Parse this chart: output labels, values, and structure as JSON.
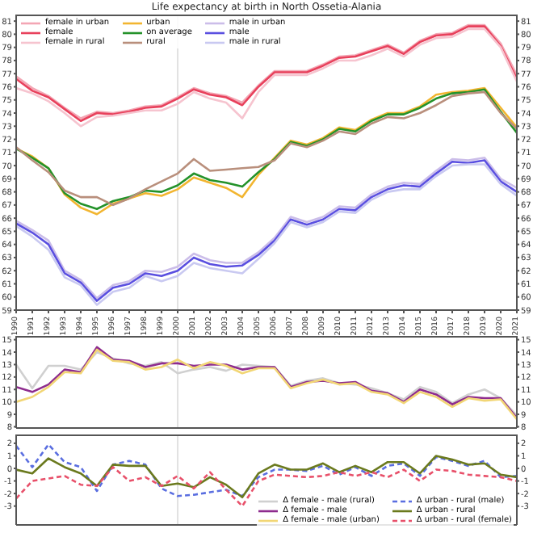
{
  "chart_data": [
    {
      "type": "line",
      "title": "Life expectancy at birth in North Ossetia-Alania",
      "legend": "top left",
      "x": [
        1990,
        1991,
        1992,
        1993,
        1994,
        1995,
        1996,
        1997,
        1998,
        1999,
        2000,
        2001,
        2002,
        2003,
        2004,
        2005,
        2006,
        2007,
        2008,
        2009,
        2010,
        2011,
        2012,
        2013,
        2014,
        2015,
        2016,
        2017,
        2018,
        2019,
        2020,
        2021
      ],
      "xlim": [
        1990,
        2021
      ],
      "xticks": [
        1990,
        1991,
        1992,
        1993,
        1994,
        1995,
        1996,
        1997,
        1998,
        1999,
        2000,
        2001,
        2002,
        2003,
        2004,
        2005,
        2006,
        2007,
        2008,
        2009,
        2010,
        2011,
        2012,
        2013,
        2014,
        2015,
        2016,
        2017,
        2018,
        2019,
        2020,
        2021
      ],
      "ylim": [
        59,
        81.5
      ],
      "yticks": [
        59,
        60,
        61,
        62,
        63,
        64,
        65,
        66,
        67,
        68,
        69,
        70,
        71,
        72,
        73,
        74,
        75,
        76,
        77,
        78,
        79,
        80,
        81
      ],
      "y2lim": [
        59,
        81.5
      ],
      "y2ticks": [
        59,
        60,
        61,
        62,
        63,
        64,
        65,
        66,
        67,
        68,
        69,
        70,
        71,
        72,
        73,
        74,
        75,
        76,
        77,
        78,
        79,
        80,
        81
      ],
      "ref_lines": [
        {
          "axis": "x",
          "value": 2000,
          "color": "#e2e2e2"
        }
      ],
      "series": [
        {
          "name": "female in urban",
          "color": "#f3a6b4",
          "values": [
            76.8,
            75.9,
            75.3,
            74.4,
            73.6,
            74.1,
            74.0,
            74.2,
            74.5,
            74.6,
            75.2,
            75.9,
            75.5,
            75.3,
            74.8,
            76.1,
            77.2,
            77.2,
            77.2,
            77.7,
            78.3,
            78.4,
            78.8,
            79.2,
            78.6,
            79.5,
            80.0,
            80.1,
            80.7,
            80.7,
            79.3,
            76.9
          ]
        },
        {
          "name": "female",
          "color": "#e8415c",
          "values": [
            76.6,
            75.7,
            75.2,
            74.3,
            73.4,
            74.0,
            73.9,
            74.1,
            74.4,
            74.5,
            75.1,
            75.8,
            75.4,
            75.2,
            74.6,
            76.0,
            77.1,
            77.1,
            77.1,
            77.6,
            78.2,
            78.3,
            78.7,
            79.1,
            78.5,
            79.4,
            79.9,
            80.0,
            80.6,
            80.6,
            79.1,
            76.6
          ]
        },
        {
          "name": "female in rural",
          "color": "#f6c4cf",
          "values": [
            75.9,
            75.5,
            74.9,
            74.0,
            73.0,
            73.7,
            73.8,
            74.0,
            74.2,
            74.2,
            74.7,
            75.6,
            75.1,
            74.8,
            73.6,
            75.6,
            76.9,
            76.9,
            76.9,
            77.4,
            78.0,
            78.0,
            78.4,
            78.9,
            78.3,
            79.2,
            79.7,
            79.8,
            80.4,
            80.4,
            79.0,
            76.4
          ]
        },
        {
          "name": "urban",
          "color": "#f2b530",
          "values": [
            71.3,
            70.7,
            69.8,
            67.8,
            66.8,
            66.3,
            67.1,
            67.5,
            67.9,
            67.7,
            68.2,
            69.1,
            68.7,
            68.3,
            67.6,
            69.3,
            70.6,
            71.9,
            71.6,
            72.1,
            72.9,
            72.7,
            73.5,
            74.0,
            74.0,
            74.5,
            75.4,
            75.6,
            75.7,
            75.9,
            74.4,
            72.9
          ]
        },
        {
          "name": "on average",
          "color": "#24922a",
          "values": [
            71.3,
            70.6,
            69.8,
            67.9,
            67.1,
            66.7,
            67.3,
            67.6,
            68.1,
            68.0,
            68.5,
            69.4,
            68.9,
            68.7,
            68.4,
            69.5,
            70.5,
            71.8,
            71.5,
            72.0,
            72.8,
            72.6,
            73.4,
            73.9,
            73.9,
            74.4,
            75.1,
            75.5,
            75.6,
            75.8,
            74.1,
            72.5
          ]
        },
        {
          "name": "rural",
          "color": "#b98f7c",
          "values": [
            71.4,
            70.4,
            69.5,
            68.1,
            67.6,
            67.6,
            67.0,
            67.5,
            68.2,
            68.8,
            69.4,
            70.5,
            69.6,
            69.7,
            69.8,
            69.9,
            70.4,
            71.7,
            71.4,
            71.9,
            72.6,
            72.4,
            73.2,
            73.7,
            73.6,
            74.0,
            74.6,
            75.3,
            75.5,
            75.6,
            74.0,
            72.8
          ]
        },
        {
          "name": "male in urban",
          "color": "#cbbde9",
          "values": [
            65.8,
            65.1,
            64.3,
            62.0,
            61.3,
            59.9,
            60.9,
            61.2,
            62.0,
            61.9,
            62.3,
            63.3,
            62.8,
            62.6,
            62.6,
            63.4,
            64.5,
            66.1,
            65.7,
            66.1,
            66.9,
            66.8,
            67.8,
            68.4,
            68.7,
            68.6,
            69.6,
            70.5,
            70.4,
            70.6,
            69.0,
            68.3
          ]
        },
        {
          "name": "male",
          "color": "#5a4fe0",
          "values": [
            65.6,
            64.9,
            64.0,
            61.8,
            61.1,
            59.7,
            60.7,
            61.0,
            61.8,
            61.6,
            62.0,
            63.0,
            62.5,
            62.3,
            62.4,
            63.2,
            64.3,
            65.9,
            65.5,
            65.9,
            66.7,
            66.6,
            67.6,
            68.2,
            68.5,
            68.4,
            69.4,
            70.3,
            70.2,
            70.4,
            68.8,
            68.0
          ]
        },
        {
          "name": "male in rural",
          "color": "#c9c9f1",
          "values": [
            65.4,
            64.6,
            63.6,
            61.5,
            60.9,
            59.4,
            60.4,
            60.7,
            61.6,
            61.2,
            61.6,
            62.6,
            62.2,
            62.0,
            61.8,
            62.9,
            64.1,
            65.7,
            65.3,
            65.7,
            66.5,
            66.4,
            67.4,
            68.0,
            68.2,
            68.2,
            69.2,
            70.0,
            70.1,
            70.1,
            68.6,
            67.7
          ]
        }
      ]
    },
    {
      "type": "line",
      "tick_labels": "y",
      "x": [
        1990,
        1991,
        1992,
        1993,
        1994,
        1995,
        1996,
        1997,
        1998,
        1999,
        2000,
        2001,
        2002,
        2003,
        2004,
        2005,
        2006,
        2007,
        2008,
        2009,
        2010,
        2011,
        2012,
        2013,
        2014,
        2015,
        2016,
        2017,
        2018,
        2019,
        2020,
        2021
      ],
      "xlim": [
        1990,
        2021
      ],
      "ylim": [
        7.9,
        15.3
      ],
      "yticks": [
        8,
        9,
        10,
        11,
        12,
        13,
        14,
        15
      ],
      "y2lim": [
        7.9,
        15.3
      ],
      "y2ticks": [
        8,
        9,
        10,
        11,
        12,
        13,
        14,
        15
      ],
      "ref_lines": [
        {
          "axis": "x",
          "value": 2000,
          "color": "#e2e2e2"
        }
      ],
      "series": [
        {
          "name": "Δ female - male (rural)",
          "color": "#d0d0d0",
          "values": [
            13.0,
            11.1,
            12.9,
            12.9,
            12.6,
            14.0,
            13.5,
            13.1,
            12.9,
            13.2,
            12.3,
            12.6,
            12.8,
            12.5,
            13.0,
            12.9,
            12.8,
            11.3,
            11.7,
            11.9,
            11.5,
            11.4,
            11.1,
            10.7,
            10.2,
            11.2,
            10.8,
            9.9,
            10.6,
            11.0,
            10.3,
            8.9
          ]
        },
        {
          "name": "Δ female - male",
          "color": "#8e2c8e",
          "values": [
            11.2,
            10.8,
            11.4,
            12.6,
            12.4,
            14.4,
            13.4,
            13.3,
            12.8,
            13.1,
            13.1,
            12.9,
            13.0,
            13.0,
            12.6,
            12.8,
            12.8,
            11.2,
            11.6,
            11.7,
            11.5,
            11.6,
            10.9,
            10.7,
            10.0,
            11.0,
            10.6,
            9.8,
            10.4,
            10.3,
            10.3,
            8.7
          ]
        },
        {
          "name": "Δ female - male (urban)",
          "color": "#f2d675",
          "values": [
            10.0,
            10.4,
            11.2,
            12.4,
            12.3,
            14.2,
            13.3,
            13.2,
            12.6,
            12.8,
            13.4,
            12.7,
            13.2,
            12.9,
            12.3,
            12.7,
            12.7,
            11.1,
            11.5,
            11.8,
            11.4,
            11.5,
            10.8,
            10.6,
            9.9,
            10.8,
            10.4,
            9.6,
            10.3,
            10.1,
            10.2,
            8.6
          ]
        }
      ]
    },
    {
      "type": "line",
      "tick_labels": "y",
      "legend": "bottom right",
      "x": [
        1990,
        1991,
        1992,
        1993,
        1994,
        1995,
        1996,
        1997,
        1998,
        1999,
        2000,
        2001,
        2002,
        2003,
        2004,
        2005,
        2006,
        2007,
        2008,
        2009,
        2010,
        2011,
        2012,
        2013,
        2014,
        2015,
        2016,
        2017,
        2018,
        2019,
        2020,
        2021
      ],
      "xlim": [
        1990,
        2021
      ],
      "ylim": [
        -4.5,
        2.7
      ],
      "yticks": [
        -3,
        -2,
        -1,
        0,
        1,
        2
      ],
      "y2lim": [
        -4.5,
        2.7
      ],
      "y2ticks": [
        -3,
        -2,
        -1,
        0,
        1,
        2
      ],
      "ref_lines": [
        {
          "axis": "x",
          "value": 2000,
          "color": "#e2e2e2"
        }
      ],
      "series": [
        {
          "name": "Δ urban - rural (male)",
          "color": "#5a6ee0",
          "line_style": "dashed",
          "values": [
            1.8,
            0.1,
            1.9,
            0.5,
            0.1,
            -1.8,
            0.3,
            0.6,
            0.3,
            -1.6,
            -2.2,
            -2.1,
            -1.9,
            -1.7,
            -2.2,
            -0.7,
            -0.1,
            -0.1,
            -0.2,
            0.2,
            -0.5,
            0.1,
            -0.6,
            0.2,
            0.4,
            -0.6,
            0.9,
            0.6,
            0.2,
            0.6,
            -0.7,
            -0.6
          ]
        },
        {
          "name": "Δ urban - rural",
          "color": "#6b7a1e",
          "values": [
            -0.1,
            -0.4,
            0.8,
            0.1,
            -0.4,
            -1.4,
            0.3,
            0.2,
            0.2,
            -1.4,
            -1.2,
            -1.5,
            -0.7,
            -1.3,
            -2.3,
            -0.4,
            0.3,
            -0.1,
            -0.1,
            0.4,
            -0.3,
            0.2,
            -0.3,
            0.5,
            0.5,
            -0.4,
            1.0,
            0.7,
            0.3,
            0.4,
            -0.5,
            -0.7
          ]
        },
        {
          "name": "Δ urban - rural (female)",
          "color": "#e8506a",
          "line_style": "dashed",
          "values": [
            -2.4,
            -1.0,
            -0.8,
            -0.6,
            -1.3,
            -1.4,
            0.1,
            -1.0,
            -0.7,
            -1.4,
            -0.6,
            -1.6,
            -0.3,
            -1.7,
            -3.0,
            -1.0,
            -0.5,
            -0.6,
            -0.7,
            -0.6,
            -0.3,
            -0.6,
            -0.3,
            -0.7,
            -0.1,
            -1.0,
            -0.1,
            -0.2,
            -0.5,
            -0.6,
            -0.7,
            -1.0
          ]
        }
      ]
    }
  ]
}
